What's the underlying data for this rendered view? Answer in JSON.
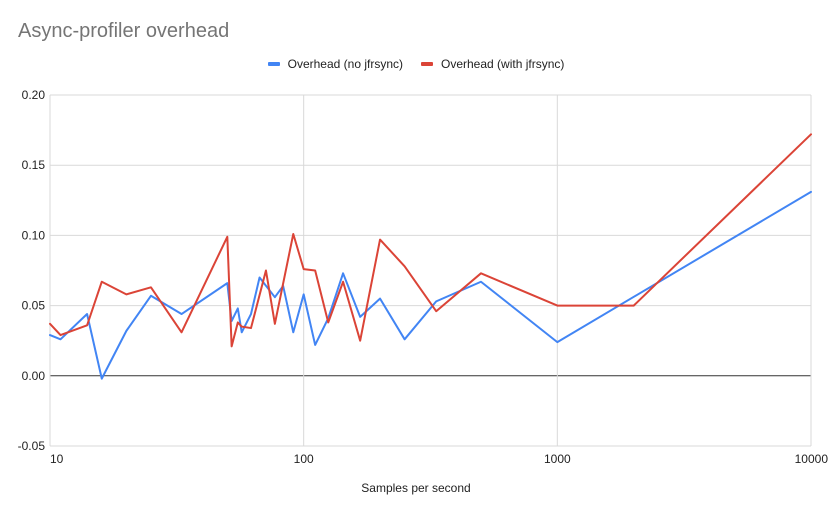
{
  "chart_data": {
    "type": "line",
    "title": "Async-profiler overhead",
    "xlabel": "Samples per second",
    "ylabel": "",
    "x_scale": "log",
    "xlim": [
      10,
      10000
    ],
    "ylim": [
      -0.05,
      0.2
    ],
    "x_ticks": [
      "10",
      "100",
      "1000",
      "10000"
    ],
    "y_ticks": [
      "0.20",
      "0.15",
      "0.10",
      "0.05",
      "0.00",
      "-0.05"
    ],
    "grid": true,
    "legend_position": "top",
    "series": [
      {
        "name": "Overhead (no jfrsync)",
        "color": "#4285f4",
        "points": [
          [
            10,
            0.029
          ],
          [
            11,
            0.026
          ],
          [
            14,
            0.044
          ],
          [
            16,
            -0.002
          ],
          [
            20,
            0.032
          ],
          [
            25,
            0.057
          ],
          [
            33,
            0.044
          ],
          [
            50,
            0.066
          ],
          [
            52,
            0.039
          ],
          [
            55,
            0.048
          ],
          [
            57,
            0.031
          ],
          [
            62,
            0.044
          ],
          [
            67,
            0.07
          ],
          [
            77,
            0.056
          ],
          [
            83,
            0.064
          ],
          [
            91,
            0.031
          ],
          [
            100,
            0.058
          ],
          [
            111,
            0.022
          ],
          [
            125,
            0.041
          ],
          [
            143,
            0.073
          ],
          [
            167,
            0.042
          ],
          [
            200,
            0.055
          ],
          [
            250,
            0.026
          ],
          [
            333,
            0.053
          ],
          [
            500,
            0.067
          ],
          [
            1000,
            0.024
          ],
          [
            10000,
            0.131
          ]
        ]
      },
      {
        "name": "Overhead (with jfrsync)",
        "color": "#db4437",
        "points": [
          [
            10,
            0.037
          ],
          [
            11,
            0.029
          ],
          [
            14,
            0.036
          ],
          [
            16,
            0.067
          ],
          [
            20,
            0.058
          ],
          [
            25,
            0.063
          ],
          [
            33,
            0.031
          ],
          [
            50,
            0.099
          ],
          [
            52,
            0.021
          ],
          [
            55,
            0.038
          ],
          [
            57,
            0.035
          ],
          [
            62,
            0.034
          ],
          [
            71,
            0.075
          ],
          [
            77,
            0.037
          ],
          [
            91,
            0.101
          ],
          [
            100,
            0.076
          ],
          [
            111,
            0.075
          ],
          [
            125,
            0.038
          ],
          [
            143,
            0.067
          ],
          [
            167,
            0.025
          ],
          [
            200,
            0.097
          ],
          [
            250,
            0.078
          ],
          [
            333,
            0.046
          ],
          [
            500,
            0.073
          ],
          [
            1000,
            0.05
          ],
          [
            2000,
            0.05
          ],
          [
            10000,
            0.172
          ]
        ]
      }
    ]
  }
}
